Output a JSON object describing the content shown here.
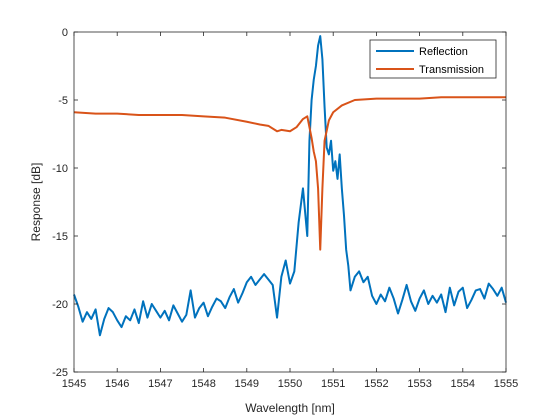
{
  "chart_data": {
    "type": "line",
    "xlabel": "Wavelength [nm]",
    "ylabel": "Response [dB]",
    "xlim": [
      1545,
      1555
    ],
    "ylim": [
      -25,
      0
    ],
    "x_ticks": [
      1545,
      1546,
      1547,
      1548,
      1549,
      1550,
      1551,
      1552,
      1553,
      1554,
      1555
    ],
    "y_ticks": [
      0,
      -5,
      -10,
      -15,
      -20,
      -25
    ],
    "grid": false,
    "legend_position": "top-right",
    "series": [
      {
        "name": "Reflection",
        "color": "#0072BD",
        "points": [
          [
            1545.0,
            -19.3
          ],
          [
            1545.1,
            -20.2
          ],
          [
            1545.2,
            -21.3
          ],
          [
            1545.3,
            -20.6
          ],
          [
            1545.4,
            -21.1
          ],
          [
            1545.5,
            -20.4
          ],
          [
            1545.6,
            -22.3
          ],
          [
            1545.7,
            -21.1
          ],
          [
            1545.8,
            -20.3
          ],
          [
            1545.9,
            -20.6
          ],
          [
            1546.0,
            -21.2
          ],
          [
            1546.1,
            -21.7
          ],
          [
            1546.2,
            -20.9
          ],
          [
            1546.3,
            -21.2
          ],
          [
            1546.4,
            -20.4
          ],
          [
            1546.5,
            -21.4
          ],
          [
            1546.6,
            -19.8
          ],
          [
            1546.7,
            -21.0
          ],
          [
            1546.8,
            -20.0
          ],
          [
            1546.9,
            -20.5
          ],
          [
            1547.0,
            -21.0
          ],
          [
            1547.1,
            -20.5
          ],
          [
            1547.2,
            -21.2
          ],
          [
            1547.3,
            -20.1
          ],
          [
            1547.4,
            -20.7
          ],
          [
            1547.5,
            -21.3
          ],
          [
            1547.6,
            -20.8
          ],
          [
            1547.7,
            -19.0
          ],
          [
            1547.8,
            -21.0
          ],
          [
            1547.9,
            -20.3
          ],
          [
            1548.0,
            -19.9
          ],
          [
            1548.1,
            -20.9
          ],
          [
            1548.2,
            -20.2
          ],
          [
            1548.3,
            -19.6
          ],
          [
            1548.4,
            -19.8
          ],
          [
            1548.5,
            -20.3
          ],
          [
            1548.6,
            -19.5
          ],
          [
            1548.7,
            -18.9
          ],
          [
            1548.8,
            -19.9
          ],
          [
            1548.9,
            -19.2
          ],
          [
            1549.0,
            -18.4
          ],
          [
            1549.1,
            -18.0
          ],
          [
            1549.2,
            -18.6
          ],
          [
            1549.3,
            -18.2
          ],
          [
            1549.4,
            -17.8
          ],
          [
            1549.5,
            -18.2
          ],
          [
            1549.6,
            -18.6
          ],
          [
            1549.7,
            -21.0
          ],
          [
            1549.8,
            -18.0
          ],
          [
            1549.9,
            -16.8
          ],
          [
            1550.0,
            -18.5
          ],
          [
            1550.1,
            -17.6
          ],
          [
            1550.2,
            -14.0
          ],
          [
            1550.3,
            -11.5
          ],
          [
            1550.4,
            -15.0
          ],
          [
            1550.45,
            -8.0
          ],
          [
            1550.5,
            -5.0
          ],
          [
            1550.55,
            -3.5
          ],
          [
            1550.6,
            -2.5
          ],
          [
            1550.65,
            -1.0
          ],
          [
            1550.7,
            -0.3
          ],
          [
            1550.75,
            -2.0
          ],
          [
            1550.8,
            -5.5
          ],
          [
            1550.85,
            -8.5
          ],
          [
            1550.9,
            -9.0
          ],
          [
            1550.95,
            -8.0
          ],
          [
            1551.0,
            -10.2
          ],
          [
            1551.05,
            -9.5
          ],
          [
            1551.1,
            -10.8
          ],
          [
            1551.15,
            -9.0
          ],
          [
            1551.2,
            -11.5
          ],
          [
            1551.25,
            -13.5
          ],
          [
            1551.3,
            -16.0
          ],
          [
            1551.35,
            -17.2
          ],
          [
            1551.4,
            -19.0
          ],
          [
            1551.5,
            -18.0
          ],
          [
            1551.6,
            -17.6
          ],
          [
            1551.7,
            -18.4
          ],
          [
            1551.8,
            -18.0
          ],
          [
            1551.9,
            -19.4
          ],
          [
            1552.0,
            -20.0
          ],
          [
            1552.1,
            -19.3
          ],
          [
            1552.2,
            -19.8
          ],
          [
            1552.3,
            -18.8
          ],
          [
            1552.4,
            -19.6
          ],
          [
            1552.5,
            -20.7
          ],
          [
            1552.6,
            -19.7
          ],
          [
            1552.7,
            -18.6
          ],
          [
            1552.8,
            -19.8
          ],
          [
            1552.9,
            -20.5
          ],
          [
            1553.0,
            -19.6
          ],
          [
            1553.1,
            -19.0
          ],
          [
            1553.2,
            -20.0
          ],
          [
            1553.3,
            -19.4
          ],
          [
            1553.4,
            -19.9
          ],
          [
            1553.5,
            -19.3
          ],
          [
            1553.6,
            -20.6
          ],
          [
            1553.7,
            -18.8
          ],
          [
            1553.8,
            -20.1
          ],
          [
            1553.9,
            -19.1
          ],
          [
            1554.0,
            -18.8
          ],
          [
            1554.1,
            -20.3
          ],
          [
            1554.2,
            -19.7
          ],
          [
            1554.3,
            -19.0
          ],
          [
            1554.4,
            -18.9
          ],
          [
            1554.5,
            -19.6
          ],
          [
            1554.6,
            -18.5
          ],
          [
            1554.7,
            -18.9
          ],
          [
            1554.8,
            -19.4
          ],
          [
            1554.9,
            -18.8
          ],
          [
            1555.0,
            -19.9
          ]
        ]
      },
      {
        "name": "Transmission",
        "color": "#D95319",
        "points": [
          [
            1545.0,
            -5.9
          ],
          [
            1545.5,
            -6.0
          ],
          [
            1546.0,
            -6.0
          ],
          [
            1546.5,
            -6.1
          ],
          [
            1547.0,
            -6.1
          ],
          [
            1547.5,
            -6.1
          ],
          [
            1548.0,
            -6.2
          ],
          [
            1548.5,
            -6.3
          ],
          [
            1549.0,
            -6.6
          ],
          [
            1549.3,
            -6.8
          ],
          [
            1549.5,
            -6.9
          ],
          [
            1549.7,
            -7.3
          ],
          [
            1549.8,
            -7.2
          ],
          [
            1550.0,
            -7.3
          ],
          [
            1550.15,
            -7.0
          ],
          [
            1550.3,
            -6.4
          ],
          [
            1550.4,
            -6.2
          ],
          [
            1550.5,
            -7.8
          ],
          [
            1550.55,
            -8.8
          ],
          [
            1550.6,
            -9.5
          ],
          [
            1550.65,
            -11.5
          ],
          [
            1550.7,
            -16.0
          ],
          [
            1550.75,
            -11.5
          ],
          [
            1550.8,
            -8.0
          ],
          [
            1550.9,
            -6.5
          ],
          [
            1551.0,
            -5.9
          ],
          [
            1551.2,
            -5.4
          ],
          [
            1551.5,
            -5.0
          ],
          [
            1552.0,
            -4.9
          ],
          [
            1552.5,
            -4.9
          ],
          [
            1553.0,
            -4.9
          ],
          [
            1553.5,
            -4.8
          ],
          [
            1554.0,
            -4.8
          ],
          [
            1554.5,
            -4.8
          ],
          [
            1555.0,
            -4.8
          ]
        ]
      }
    ]
  }
}
